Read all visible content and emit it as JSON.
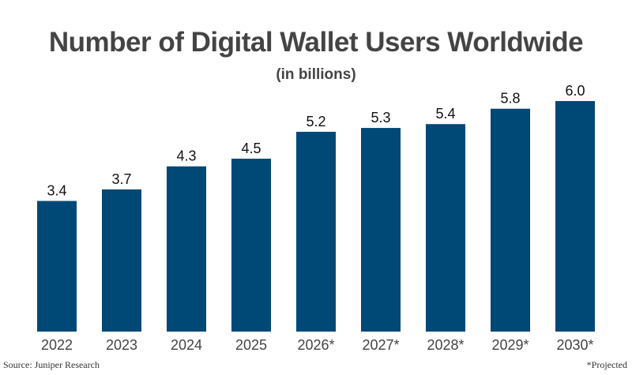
{
  "chart_data": {
    "type": "bar",
    "title": "Number of Digital Wallet Users Worldwide",
    "subtitle": "(in billions)",
    "categories": [
      "2022",
      "2023",
      "2024",
      "2025",
      "2026*",
      "2027*",
      "2028*",
      "2029*",
      "2030*"
    ],
    "values": [
      3.4,
      3.7,
      4.3,
      4.5,
      5.2,
      5.3,
      5.4,
      5.8,
      6.0
    ],
    "data_labels": [
      "3.4",
      "3.7",
      "4.3",
      "4.5",
      "5.2",
      "5.3",
      "5.4",
      "5.8",
      "6.0"
    ],
    "ylim": [
      0,
      6
    ],
    "grid": false,
    "bar_color": "#004876"
  },
  "footer": {
    "source": "Source: Juniper Research",
    "note": "*Projected"
  }
}
